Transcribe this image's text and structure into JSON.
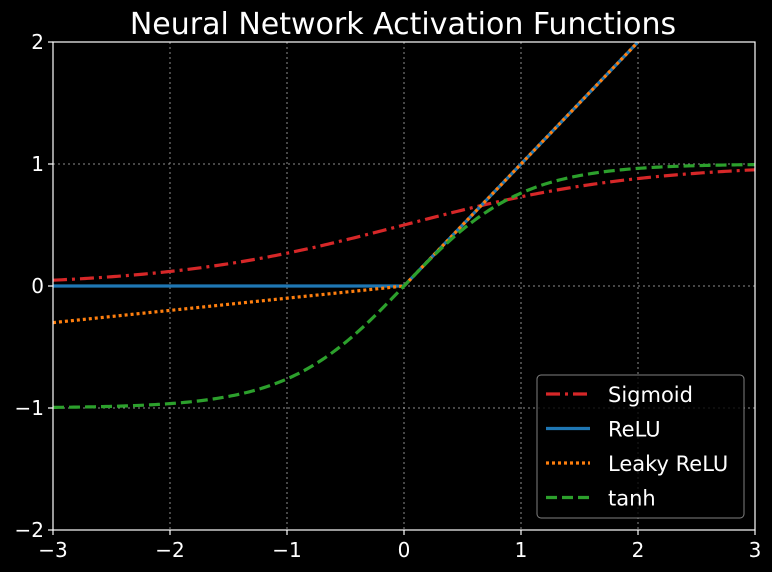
{
  "chart_data": {
    "type": "line",
    "title": "Neural Network Activation Functions",
    "xlabel": "",
    "ylabel": "",
    "xlim": [
      -3,
      3
    ],
    "ylim": [
      -2,
      2
    ],
    "x_ticks": [
      -3,
      -2,
      -1,
      0,
      1,
      2,
      3
    ],
    "x_tick_labels": [
      "−3",
      "−2",
      "−1",
      "0",
      "1",
      "2",
      "3"
    ],
    "y_ticks": [
      -2,
      -1,
      0,
      1,
      2
    ],
    "y_tick_labels": [
      "−2",
      "−1",
      "0",
      "1",
      "2"
    ],
    "grid": true,
    "legend_position": "lower-right",
    "background": "#000000",
    "series": [
      {
        "name": "Sigmoid",
        "color": "#d62728",
        "style": "dashdot",
        "x": [
          -3,
          -2.5,
          -2,
          -1.5,
          -1,
          -0.5,
          0,
          0.5,
          1,
          1.5,
          2,
          2.5,
          3
        ],
        "y": [
          0.047,
          0.076,
          0.119,
          0.182,
          0.269,
          0.378,
          0.5,
          0.622,
          0.731,
          0.818,
          0.881,
          0.924,
          0.953
        ]
      },
      {
        "name": "ReLU",
        "color": "#1f77b4",
        "style": "solid",
        "x": [
          -3,
          0,
          2
        ],
        "y": [
          0,
          0,
          2
        ]
      },
      {
        "name": "Leaky ReLU",
        "color": "#ff7f0e",
        "style": "dotted",
        "x": [
          -3,
          0,
          2
        ],
        "y": [
          -0.3,
          0,
          2
        ]
      },
      {
        "name": "tanh",
        "color": "#2ca02c",
        "style": "dashed",
        "x": [
          -3,
          -2.5,
          -2,
          -1.5,
          -1,
          -0.75,
          -0.5,
          -0.25,
          0,
          0.25,
          0.5,
          0.75,
          1,
          1.5,
          2,
          2.5,
          3
        ],
        "y": [
          -0.995,
          -0.987,
          -0.964,
          -0.905,
          -0.762,
          -0.635,
          -0.462,
          -0.245,
          0,
          0.245,
          0.462,
          0.635,
          0.762,
          0.905,
          0.964,
          0.987,
          0.995
        ]
      }
    ]
  }
}
